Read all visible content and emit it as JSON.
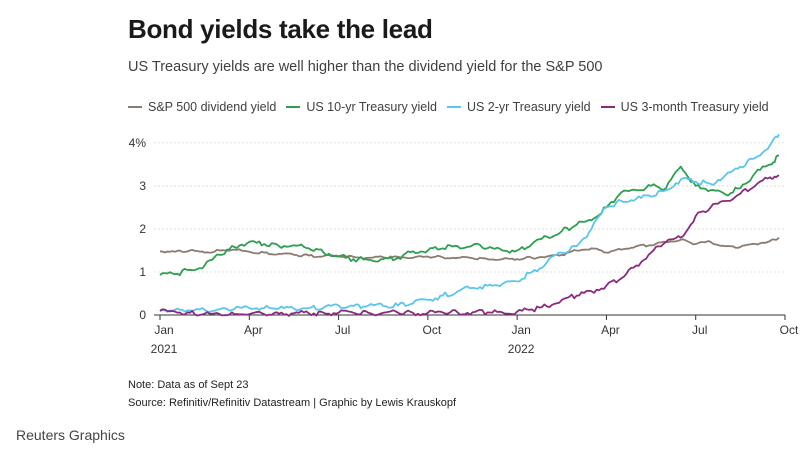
{
  "header": {
    "title": "Bond yields take the lead",
    "subtitle": "US Treasury yields are well higher than the dividend yield for the S&P 500"
  },
  "notes": {
    "note": "Note: Data as of Sept 23",
    "source": "Source: Refinitiv/Refinitiv Datastream | Graphic by Lewis Krauskopf"
  },
  "brand": "Reuters Graphics",
  "chart_data": {
    "type": "line",
    "title": "Bond yields take the lead",
    "xlabel": "",
    "ylabel": "",
    "ylim": [
      0,
      4.3
    ],
    "xlim": [
      0,
      21
    ],
    "yticks": [
      {
        "value": 0,
        "label": "0"
      },
      {
        "value": 1,
        "label": "1"
      },
      {
        "value": 2,
        "label": "2"
      },
      {
        "value": 3,
        "label": "3"
      },
      {
        "value": 4,
        "label": "4%"
      }
    ],
    "xticks": [
      {
        "value": 0,
        "label": "Jan",
        "sublabel": "2021"
      },
      {
        "value": 3,
        "label": "Apr",
        "sublabel": ""
      },
      {
        "value": 6,
        "label": "Jul",
        "sublabel": ""
      },
      {
        "value": 9,
        "label": "Oct",
        "sublabel": ""
      },
      {
        "value": 12,
        "label": "Jan",
        "sublabel": "2022"
      },
      {
        "value": 15,
        "label": "Apr",
        "sublabel": ""
      },
      {
        "value": 18,
        "label": "Jul",
        "sublabel": ""
      },
      {
        "value": 21,
        "label": "Oct",
        "sublabel": ""
      }
    ],
    "grid": true,
    "legend_position": "top",
    "series": [
      {
        "name": "S&P 500 dividend yield",
        "color": "#8c7b70",
        "x": [
          0,
          0.5,
          1,
          1.5,
          2,
          2.5,
          3,
          3.5,
          4,
          4.5,
          5,
          5.5,
          6,
          6.5,
          7,
          7.5,
          8,
          8.5,
          9,
          9.5,
          10,
          10.5,
          11,
          11.5,
          12,
          12.5,
          13,
          13.5,
          14,
          14.5,
          15,
          15.5,
          16,
          16.5,
          17,
          17.5,
          18,
          18.5,
          19,
          19.5,
          20,
          20.5,
          20.8
        ],
        "values": [
          1.48,
          1.47,
          1.5,
          1.45,
          1.5,
          1.52,
          1.47,
          1.45,
          1.42,
          1.4,
          1.38,
          1.37,
          1.36,
          1.35,
          1.33,
          1.34,
          1.35,
          1.33,
          1.36,
          1.34,
          1.33,
          1.32,
          1.3,
          1.3,
          1.3,
          1.33,
          1.36,
          1.4,
          1.5,
          1.55,
          1.45,
          1.52,
          1.6,
          1.62,
          1.7,
          1.75,
          1.65,
          1.7,
          1.6,
          1.58,
          1.65,
          1.72,
          1.8
        ]
      },
      {
        "name": "US 10-yr Treasury yield",
        "color": "#2e9e4f",
        "x": [
          0,
          0.5,
          1,
          1.5,
          2,
          2.5,
          3,
          3.5,
          4,
          4.5,
          5,
          5.5,
          6,
          6.5,
          7,
          7.5,
          8,
          8.5,
          9,
          9.5,
          10,
          10.5,
          11,
          11.5,
          12,
          12.5,
          13,
          13.5,
          14,
          14.5,
          15,
          15.5,
          16,
          16.5,
          17,
          17.5,
          18,
          18.5,
          19,
          19.5,
          20,
          20.5,
          20.8
        ],
        "values": [
          0.93,
          0.95,
          1.05,
          1.15,
          1.4,
          1.58,
          1.7,
          1.65,
          1.6,
          1.62,
          1.55,
          1.45,
          1.37,
          1.3,
          1.28,
          1.3,
          1.33,
          1.48,
          1.5,
          1.55,
          1.6,
          1.62,
          1.55,
          1.5,
          1.5,
          1.65,
          1.82,
          1.95,
          2.1,
          2.2,
          2.5,
          2.85,
          2.9,
          3.0,
          2.95,
          3.45,
          3.0,
          2.9,
          2.8,
          2.95,
          3.3,
          3.5,
          3.7
        ]
      },
      {
        "name": "US 2-yr Treasury yield",
        "color": "#59c6ea",
        "x": [
          0,
          0.5,
          1,
          1.5,
          2,
          2.5,
          3,
          3.5,
          4,
          4.5,
          5,
          5.5,
          6,
          6.5,
          7,
          7.5,
          8,
          8.5,
          9,
          9.5,
          10,
          10.5,
          11,
          11.5,
          12,
          12.5,
          13,
          13.5,
          14,
          14.5,
          15,
          15.5,
          16,
          16.5,
          17,
          17.5,
          18,
          18.5,
          19,
          19.5,
          20,
          20.5,
          20.8
        ],
        "values": [
          0.12,
          0.12,
          0.11,
          0.12,
          0.13,
          0.14,
          0.16,
          0.16,
          0.15,
          0.15,
          0.16,
          0.17,
          0.22,
          0.21,
          0.22,
          0.21,
          0.22,
          0.27,
          0.35,
          0.45,
          0.55,
          0.63,
          0.68,
          0.72,
          0.78,
          1.0,
          1.22,
          1.45,
          1.6,
          2.0,
          2.5,
          2.65,
          2.7,
          2.75,
          2.9,
          3.15,
          3.1,
          3.05,
          3.25,
          3.45,
          3.65,
          3.95,
          4.2
        ]
      },
      {
        "name": "US 3-month Treasury yield",
        "color": "#8a2a7e",
        "x": [
          0,
          0.5,
          1,
          1.5,
          2,
          2.5,
          3,
          3.5,
          4,
          4.5,
          5,
          5.5,
          6,
          6.5,
          7,
          7.5,
          8,
          8.5,
          9,
          9.5,
          10,
          10.5,
          11,
          11.5,
          12,
          12.5,
          13,
          13.5,
          14,
          14.5,
          15,
          15.5,
          16,
          16.5,
          17,
          17.5,
          18,
          18.5,
          19,
          19.5,
          20,
          20.5,
          20.8
        ],
        "values": [
          0.09,
          0.08,
          0.05,
          0.03,
          0.02,
          0.02,
          0.02,
          0.02,
          0.03,
          0.04,
          0.04,
          0.05,
          0.05,
          0.05,
          0.05,
          0.05,
          0.05,
          0.05,
          0.05,
          0.06,
          0.06,
          0.06,
          0.06,
          0.06,
          0.08,
          0.13,
          0.2,
          0.35,
          0.45,
          0.55,
          0.68,
          0.85,
          1.15,
          1.45,
          1.7,
          1.8,
          2.3,
          2.5,
          2.65,
          2.82,
          3.0,
          3.2,
          3.25
        ]
      }
    ]
  }
}
